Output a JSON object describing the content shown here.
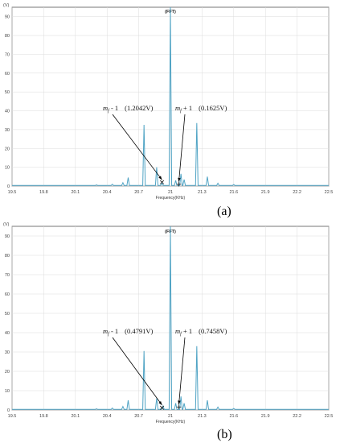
{
  "chart_data": [
    {
      "type": "line",
      "title": "(FFT)",
      "xlabel": "Frequency(KHz)",
      "yunit": "(V)",
      "xlim": [
        19.5,
        22.5
      ],
      "ylim": [
        0,
        95
      ],
      "xticks": [
        "19.5",
        "19.8",
        "20.1",
        "20.4",
        "20.7",
        "21",
        "21.3",
        "21.6",
        "21.9",
        "22.2",
        "22.5"
      ],
      "yticks": [
        "0",
        "10",
        "20",
        "30",
        "40",
        "50",
        "60",
        "70",
        "80",
        "90"
      ],
      "grid": true,
      "color": "#4fa3c4",
      "panel_label": "(a)",
      "peaks": [
        {
          "x": 20.45,
          "y": 1.0
        },
        {
          "x": 20.55,
          "y": 1.8
        },
        {
          "x": 20.6,
          "y": 4.5
        },
        {
          "x": 20.75,
          "y": 32.5
        },
        {
          "x": 20.87,
          "y": 10.0
        },
        {
          "x": 20.92,
          "y": 1.5
        },
        {
          "x": 21.0,
          "y": 95
        },
        {
          "x": 21.05,
          "y": 3.0
        },
        {
          "x": 21.1,
          "y": 6.5
        },
        {
          "x": 21.13,
          "y": 3.5
        },
        {
          "x": 21.25,
          "y": 33.5
        },
        {
          "x": 21.35,
          "y": 5.0
        },
        {
          "x": 21.45,
          "y": 1.5
        },
        {
          "x": 21.6,
          "y": 0.8
        },
        {
          "x": 20.3,
          "y": 0.6
        }
      ],
      "annotations": [
        {
          "label": "m",
          "sub": "f",
          "suffix": " - 1",
          "value": "(1.2042V)",
          "marker": "×",
          "mx": 20.92,
          "my": 1.2
        },
        {
          "label": "m",
          "sub": "f",
          "suffix": " + 1",
          "value": "(0.1625V)",
          "marker": "+",
          "mx": 21.08,
          "my": 0.16
        }
      ]
    },
    {
      "type": "line",
      "title": "(FFT)",
      "xlabel": "Frequency(KHz)",
      "yunit": "(V)",
      "xlim": [
        19.5,
        22.5
      ],
      "ylim": [
        0,
        95
      ],
      "xticks": [
        "19.5",
        "19.8",
        "20.1",
        "20.4",
        "20.7",
        "21",
        "21.3",
        "21.6",
        "21.9",
        "22.2",
        "22.5"
      ],
      "yticks": [
        "0",
        "10",
        "20",
        "30",
        "40",
        "50",
        "60",
        "70",
        "80",
        "90"
      ],
      "grid": true,
      "color": "#4fa3c4",
      "panel_label": "(b)",
      "peaks": [
        {
          "x": 20.45,
          "y": 1.0
        },
        {
          "x": 20.55,
          "y": 1.8
        },
        {
          "x": 20.6,
          "y": 5.0
        },
        {
          "x": 20.75,
          "y": 30.5
        },
        {
          "x": 20.87,
          "y": 6.0
        },
        {
          "x": 20.93,
          "y": 2.0
        },
        {
          "x": 21.0,
          "y": 95
        },
        {
          "x": 21.05,
          "y": 3.5
        },
        {
          "x": 21.1,
          "y": 7.0
        },
        {
          "x": 21.13,
          "y": 3.5
        },
        {
          "x": 21.25,
          "y": 33.0
        },
        {
          "x": 21.35,
          "y": 5.0
        },
        {
          "x": 21.45,
          "y": 1.5
        },
        {
          "x": 21.6,
          "y": 0.8
        },
        {
          "x": 20.3,
          "y": 0.6
        }
      ],
      "annotations": [
        {
          "label": "m",
          "sub": "f",
          "suffix": " - 1",
          "value": "(0.4791V)",
          "marker": "×",
          "mx": 20.92,
          "my": 0.48
        },
        {
          "label": "m",
          "sub": "f",
          "suffix": " + 1",
          "value": "(0.7458V)",
          "marker": "+",
          "mx": 21.08,
          "my": 0.75
        }
      ]
    }
  ]
}
